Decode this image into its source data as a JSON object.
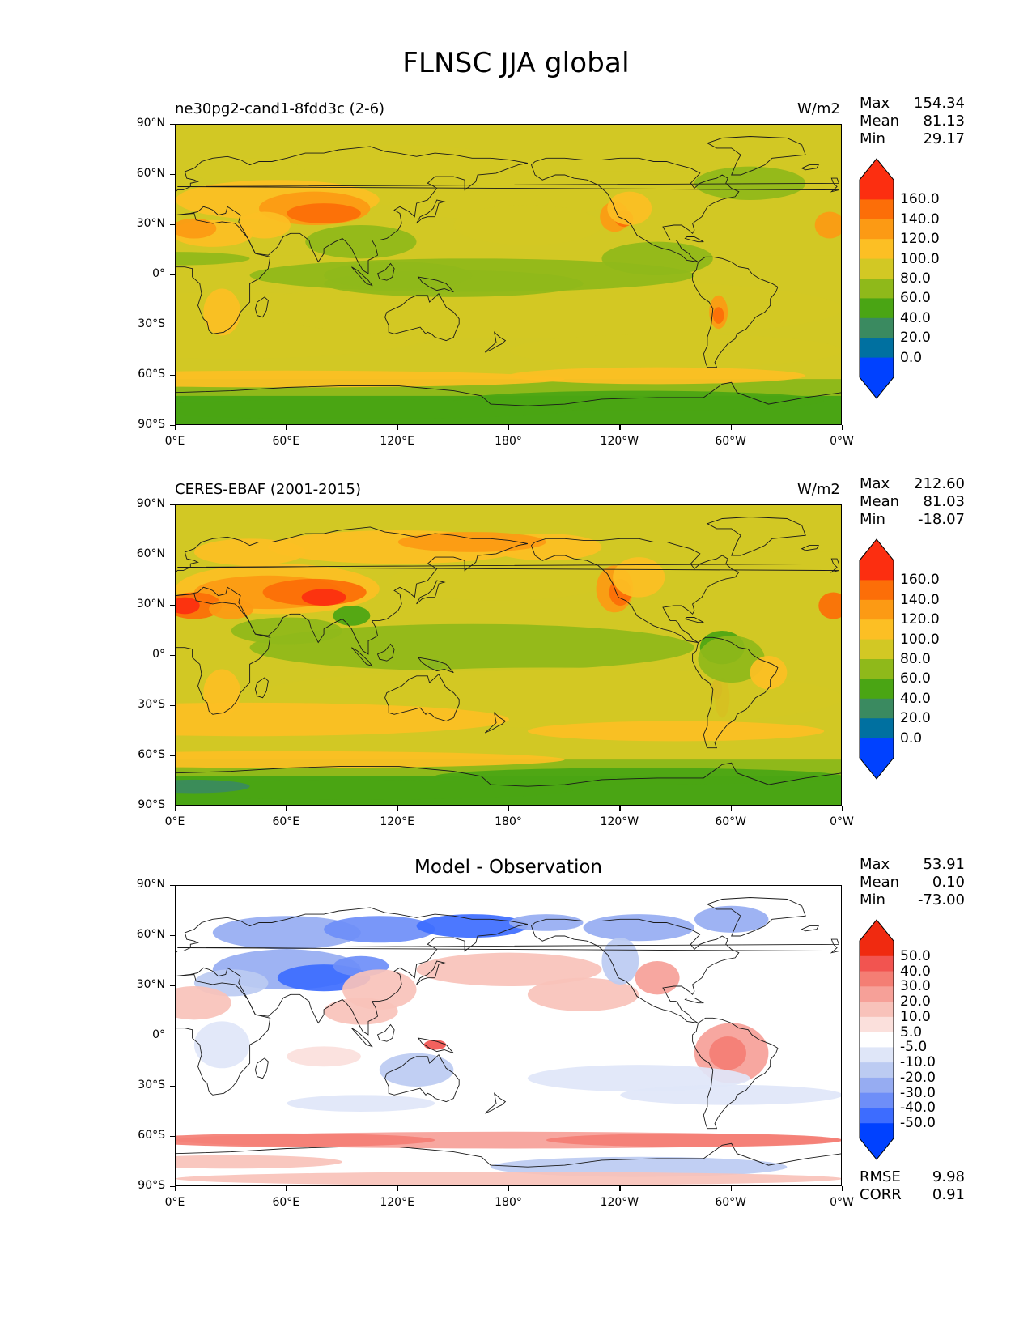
{
  "figure_title": "FLNSC JJA global",
  "colors": {
    "land_outline": "#1a1a1a",
    "abs_levels": [
      "#0041ff",
      "#0070a0",
      "#3a8a60",
      "#4aa514",
      "#8fb91a",
      "#d2c824",
      "#fcbf24",
      "#fc9a14",
      "#fc6e08",
      "#fc2e10"
    ],
    "diff_levels": [
      "#0041ff",
      "#3d6cff",
      "#6e8ef8",
      "#96acf2",
      "#bccbf2",
      "#dfe6f8",
      "#ffffff",
      "#fbe0dc",
      "#f8c2ba",
      "#f6a098",
      "#f47e74",
      "#f25450",
      "#f02a10"
    ]
  },
  "panels": [
    {
      "name": "model",
      "title": "ne30pg2-cand1-8fdd3c (2-6)",
      "center_title": "",
      "units": "W/m2",
      "stats": [
        {
          "label": "Max",
          "value": "154.34"
        },
        {
          "label": "Mean",
          "value": "81.13"
        },
        {
          "label": "Min",
          "value": "29.17"
        }
      ],
      "colorbar_type": "abs"
    },
    {
      "name": "obs",
      "title": "CERES-EBAF (2001-2015)",
      "center_title": "",
      "units": "W/m2",
      "stats": [
        {
          "label": "Max",
          "value": "212.60"
        },
        {
          "label": "Mean",
          "value": "81.03"
        },
        {
          "label": "Min",
          "value": "-18.07"
        }
      ],
      "colorbar_type": "abs"
    },
    {
      "name": "diff",
      "title": "",
      "center_title": "Model - Observation",
      "units": "",
      "stats": [
        {
          "label": "Max",
          "value": "53.91"
        },
        {
          "label": "Mean",
          "value": "0.10"
        },
        {
          "label": "Min",
          "value": "-73.00"
        }
      ],
      "colorbar_type": "diff"
    }
  ],
  "abs_colorbar_labels": [
    "160.0",
    "140.0",
    "120.0",
    "100.0",
    "80.0",
    "60.0",
    "40.0",
    "20.0",
    "0.0"
  ],
  "diff_colorbar_labels": [
    "50.0",
    "40.0",
    "30.0",
    "20.0",
    "10.0",
    "5.0",
    "-5.0",
    "-10.0",
    "-20.0",
    "-30.0",
    "-40.0",
    "-50.0"
  ],
  "lat_ticks": [
    "90°N",
    "60°N",
    "30°N",
    "0°",
    "30°S",
    "60°S",
    "90°S"
  ],
  "lon_ticks": [
    "0°E",
    "60°E",
    "120°E",
    "180°",
    "120°W",
    "60°W",
    "0°W"
  ],
  "bottom_stats": [
    {
      "label": "RMSE",
      "value": "9.98"
    },
    {
      "label": "CORR",
      "value": "0.91"
    }
  ]
}
